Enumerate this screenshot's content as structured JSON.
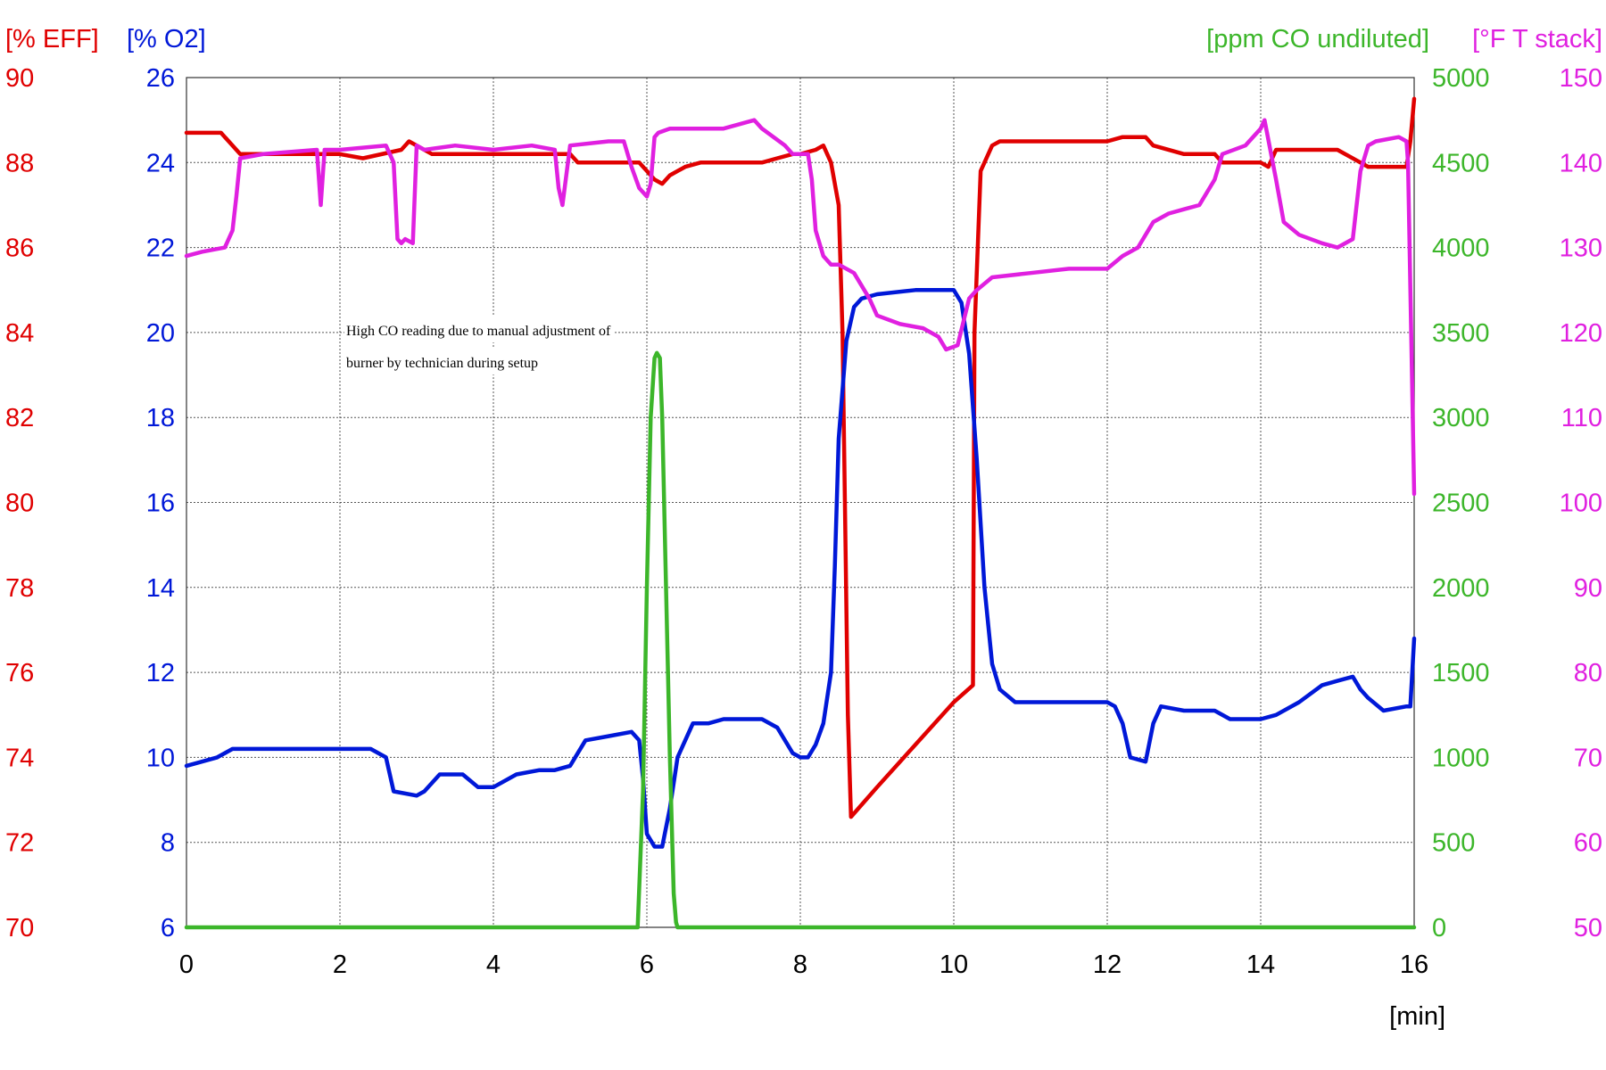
{
  "chart_data": {
    "type": "line",
    "xlabel": "[min]",
    "xlim": [
      0,
      16
    ],
    "x_ticks": [
      "0",
      "2",
      "4",
      "6",
      "8",
      "10",
      "12",
      "14",
      "16"
    ],
    "grid": true,
    "annotation": {
      "lines": [
        "High CO reading due to manual adjustment of",
        "burner by technician during setup"
      ]
    },
    "axes": [
      {
        "id": "eff",
        "label": "[% EFF]",
        "side": "left-outer",
        "color": "#e00000",
        "ylim": [
          70,
          90
        ],
        "ticks": [
          "90",
          "88",
          "86",
          "84",
          "82",
          "80",
          "78",
          "76",
          "74",
          "72",
          "70"
        ]
      },
      {
        "id": "o2",
        "label": "[% O2]",
        "side": "left-inner",
        "color": "#0018d8",
        "ylim": [
          6,
          26
        ],
        "ticks": [
          "26",
          "24",
          "22",
          "20",
          "18",
          "16",
          "14",
          "12",
          "10",
          "8",
          "6"
        ]
      },
      {
        "id": "co",
        "label": "[ppm CO undiluted]",
        "side": "right-inner",
        "color": "#3cb62a",
        "ylim": [
          0,
          5000
        ],
        "ticks": [
          "5000",
          "4500",
          "4000",
          "3500",
          "3000",
          "2500",
          "2000",
          "1500",
          "1000",
          "500",
          "0"
        ]
      },
      {
        "id": "temp",
        "label": "[°F T stack]",
        "side": "right-outer",
        "color": "#e020e0",
        "ylim": [
          50,
          150
        ],
        "ticks": [
          "150",
          "140",
          "130",
          "120",
          "110",
          "100",
          "90",
          "80",
          "70",
          "60",
          "50"
        ]
      }
    ],
    "series": [
      {
        "axis": "eff",
        "color": "#e00000",
        "x": [
          0,
          0.45,
          0.5,
          0.7,
          1.0,
          2.0,
          2.3,
          2.8,
          2.9,
          3.2,
          4.0,
          4.2,
          5.0,
          5.1,
          5.2,
          5.9,
          6.0,
          6.1,
          6.2,
          6.3,
          6.5,
          6.7,
          7.0,
          7.5,
          7.7,
          7.9,
          8.0,
          8.2,
          8.3,
          8.4,
          8.5,
          8.55,
          8.62,
          8.66,
          9.0,
          9.5,
          10.0,
          10.25,
          10.27,
          10.35,
          10.5,
          10.6,
          10.8,
          11.0,
          12.0,
          12.2,
          12.5,
          12.6,
          13.0,
          13.4,
          13.5,
          14.0,
          14.1,
          14.2,
          15.0,
          15.3,
          15.4,
          15.6,
          15.9,
          15.95,
          16.0
        ],
        "y": [
          88.7,
          88.7,
          88.6,
          88.2,
          88.2,
          88.2,
          88.1,
          88.3,
          88.5,
          88.2,
          88.2,
          88.2,
          88.2,
          88.0,
          88.0,
          88.0,
          87.8,
          87.6,
          87.5,
          87.7,
          87.9,
          88.0,
          88.0,
          88.0,
          88.1,
          88.2,
          88.2,
          88.3,
          88.4,
          88.0,
          87.0,
          84.0,
          75.0,
          72.6,
          73.3,
          74.3,
          75.3,
          75.7,
          84.0,
          87.8,
          88.4,
          88.5,
          88.5,
          88.5,
          88.5,
          88.6,
          88.6,
          88.4,
          88.2,
          88.2,
          88.0,
          88.0,
          87.9,
          88.3,
          88.3,
          88.0,
          87.9,
          87.9,
          87.9,
          88.5,
          89.5
        ]
      },
      {
        "axis": "o2",
        "color": "#0018d8",
        "x": [
          0,
          0.2,
          0.4,
          0.6,
          1.0,
          2.0,
          2.4,
          2.6,
          2.7,
          3.0,
          3.1,
          3.3,
          3.6,
          3.8,
          4.0,
          4.3,
          4.6,
          4.8,
          5.0,
          5.2,
          5.5,
          5.8,
          5.9,
          5.95,
          6.0,
          6.1,
          6.2,
          6.3,
          6.4,
          6.6,
          6.8,
          7.0,
          7.5,
          7.7,
          7.9,
          8.0,
          8.1,
          8.2,
          8.3,
          8.4,
          8.45,
          8.5,
          8.6,
          8.7,
          8.8,
          9.0,
          9.5,
          10.0,
          10.1,
          10.2,
          10.3,
          10.4,
          10.5,
          10.6,
          10.8,
          11.0,
          12.0,
          12.1,
          12.2,
          12.3,
          12.5,
          12.6,
          12.7,
          13.0,
          13.4,
          13.6,
          14.0,
          14.2,
          14.5,
          14.8,
          15.0,
          15.2,
          15.3,
          15.4,
          15.6,
          15.9,
          15.95,
          16.0
        ],
        "y": [
          9.8,
          9.9,
          10.0,
          10.2,
          10.2,
          10.2,
          10.2,
          10.0,
          9.2,
          9.1,
          9.2,
          9.6,
          9.6,
          9.3,
          9.3,
          9.6,
          9.7,
          9.7,
          9.8,
          10.4,
          10.5,
          10.6,
          10.4,
          9.5,
          8.2,
          7.9,
          7.9,
          8.8,
          10.0,
          10.8,
          10.8,
          10.9,
          10.9,
          10.7,
          10.1,
          10.0,
          10.0,
          10.3,
          10.8,
          12.0,
          14.5,
          17.5,
          19.8,
          20.6,
          20.8,
          20.9,
          21.0,
          21.0,
          20.7,
          19.5,
          17.0,
          14.0,
          12.2,
          11.6,
          11.3,
          11.3,
          11.3,
          11.2,
          10.8,
          10.0,
          9.9,
          10.8,
          11.2,
          11.1,
          11.1,
          10.9,
          10.9,
          11.0,
          11.3,
          11.7,
          11.8,
          11.9,
          11.6,
          11.4,
          11.1,
          11.2,
          11.2,
          12.8
        ]
      },
      {
        "axis": "co",
        "color": "#3cb62a",
        "x": [
          0,
          5.88,
          5.95,
          6.0,
          6.05,
          6.1,
          6.13,
          6.17,
          6.2,
          6.25,
          6.3,
          6.35,
          6.38,
          6.4,
          16.0
        ],
        "y": [
          0,
          0,
          800,
          2000,
          3000,
          3350,
          3380,
          3350,
          3000,
          2000,
          1000,
          200,
          30,
          0,
          0
        ]
      },
      {
        "axis": "temp",
        "color": "#e020e0",
        "x": [
          0,
          0.2,
          0.5,
          0.6,
          0.65,
          0.7,
          1.0,
          1.7,
          1.75,
          1.8,
          2.0,
          2.6,
          2.7,
          2.75,
          2.8,
          2.85,
          2.95,
          3.0,
          3.1,
          3.5,
          4.0,
          4.5,
          4.8,
          4.85,
          4.9,
          5.0,
          5.5,
          5.7,
          5.8,
          5.9,
          6.0,
          6.05,
          6.1,
          6.15,
          6.3,
          6.8,
          7.0,
          7.4,
          7.5,
          7.8,
          7.9,
          8.1,
          8.15,
          8.2,
          8.3,
          8.4,
          8.5,
          8.7,
          8.9,
          9.0,
          9.3,
          9.6,
          9.8,
          9.9,
          10.05,
          10.2,
          10.3,
          10.5,
          11.0,
          11.5,
          12.0,
          12.2,
          12.4,
          12.6,
          12.8,
          13.0,
          13.2,
          13.4,
          13.5,
          13.8,
          14.0,
          14.05,
          14.2,
          14.3,
          14.5,
          14.8,
          15.0,
          15.2,
          15.3,
          15.4,
          15.5,
          15.8,
          15.9,
          15.92,
          16.0
        ],
        "y": [
          129,
          129.5,
          130,
          132,
          136,
          140.5,
          141,
          141.5,
          135,
          141.5,
          141.5,
          142,
          140,
          131,
          130.5,
          131,
          130.5,
          142,
          141.5,
          142,
          141.5,
          142,
          141.5,
          137,
          135,
          142,
          142.5,
          142.5,
          139.5,
          137,
          136,
          137.5,
          143,
          143.5,
          144,
          144,
          144,
          145,
          144,
          142,
          141,
          141,
          138,
          132,
          129,
          128,
          128,
          127,
          124,
          122,
          121,
          120.5,
          119.5,
          118,
          118.5,
          124,
          125,
          126.5,
          127,
          127.5,
          127.5,
          129,
          130,
          133,
          134,
          134.5,
          135,
          138,
          141,
          142,
          144,
          145,
          138,
          133,
          131.5,
          130.5,
          130,
          131,
          139,
          142,
          142.5,
          143,
          142.5,
          140,
          101
        ]
      }
    ]
  }
}
